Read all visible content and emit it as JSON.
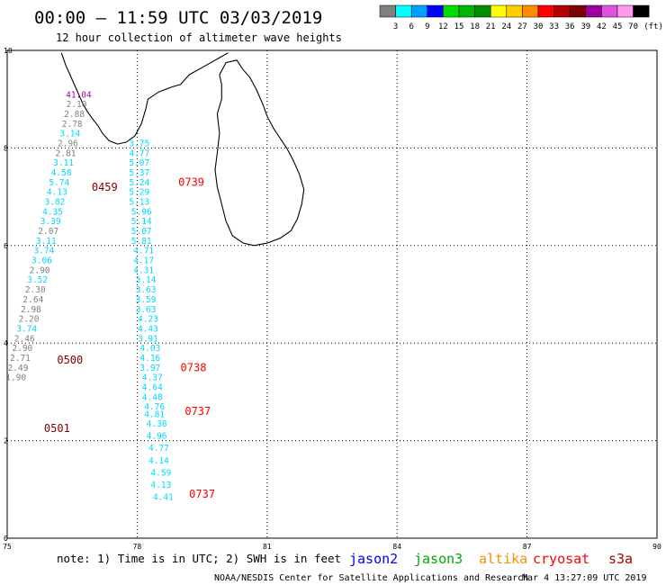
{
  "header": {
    "title": "00:00 – 11:59 UTC 03/03/2019",
    "subtitle": "12 hour collection of altimeter wave heights"
  },
  "legend": {
    "unit": "(ft)",
    "bins": [
      {
        "label": "3",
        "color": "#7f7f7f"
      },
      {
        "label": "6",
        "color": "#00ffff"
      },
      {
        "label": "9",
        "color": "#00a0ff"
      },
      {
        "label": "12",
        "color": "#0000ff"
      },
      {
        "label": "15",
        "color": "#00dd00"
      },
      {
        "label": "18",
        "color": "#00b400"
      },
      {
        "label": "21",
        "color": "#008c00"
      },
      {
        "label": "24",
        "color": "#ffff00"
      },
      {
        "label": "27",
        "color": "#ffcc00"
      },
      {
        "label": "30",
        "color": "#ff8c00"
      },
      {
        "label": "33",
        "color": "#ff0000"
      },
      {
        "label": "36",
        "color": "#b40000"
      },
      {
        "label": "39",
        "color": "#7f0000"
      },
      {
        "label": "42",
        "color": "#a000a0"
      },
      {
        "label": "45",
        "color": "#dd55dd"
      },
      {
        "label": "70",
        "color": "#ff99ee"
      },
      {
        "label": "",
        "color": "#000000"
      }
    ]
  },
  "map": {
    "lon_ticks": [
      "75",
      "78",
      "81",
      "84",
      "87",
      "90"
    ],
    "lat_ticks": [
      "0",
      "2",
      "4",
      "6",
      "8",
      "10"
    ],
    "lon_range": [
      75,
      90
    ],
    "lat_range": [
      0,
      10
    ]
  },
  "chart_data": {
    "type": "scatter",
    "tracks": [
      {
        "color": "#7f7f7f",
        "points": [
          {
            "lon": 76.65,
            "lat": 9.1,
            "v": "41.04",
            "c": "#a000a0"
          },
          {
            "lon": 76.6,
            "lat": 8.9,
            "v": "2.10",
            "c": "#7f7f7f"
          },
          {
            "lon": 76.55,
            "lat": 8.7,
            "v": "2.88",
            "c": "#7f7f7f"
          },
          {
            "lon": 76.5,
            "lat": 8.5,
            "v": "2.78",
            "c": "#7f7f7f"
          },
          {
            "lon": 76.45,
            "lat": 8.3,
            "v": "3.14",
            "c": "#00d8ff"
          },
          {
            "lon": 76.4,
            "lat": 8.1,
            "v": "2.96",
            "c": "#7f7f7f"
          },
          {
            "lon": 76.35,
            "lat": 7.9,
            "v": "2.81",
            "c": "#7f7f7f"
          },
          {
            "lon": 76.3,
            "lat": 7.7,
            "v": "3.11",
            "c": "#00d8ff"
          },
          {
            "lon": 76.25,
            "lat": 7.5,
            "v": "4.58",
            "c": "#00d8ff"
          },
          {
            "lon": 76.2,
            "lat": 7.3,
            "v": "5.74",
            "c": "#00d8ff"
          },
          {
            "lon": 76.15,
            "lat": 7.1,
            "v": "4.13",
            "c": "#00d8ff"
          },
          {
            "lon": 76.1,
            "lat": 6.9,
            "v": "3.82",
            "c": "#00d8ff"
          },
          {
            "lon": 76.05,
            "lat": 6.7,
            "v": "4.35",
            "c": "#00d8ff"
          },
          {
            "lon": 76.0,
            "lat": 6.5,
            "v": "3.39",
            "c": "#00d8ff"
          },
          {
            "lon": 75.95,
            "lat": 6.3,
            "v": "2.07",
            "c": "#7f7f7f"
          },
          {
            "lon": 75.9,
            "lat": 6.1,
            "v": "3.11",
            "c": "#00d8ff"
          },
          {
            "lon": 75.85,
            "lat": 5.9,
            "v": "3.74",
            "c": "#00d8ff"
          },
          {
            "lon": 75.8,
            "lat": 5.7,
            "v": "3.06",
            "c": "#00d8ff"
          },
          {
            "lon": 75.75,
            "lat": 5.5,
            "v": "2.90",
            "c": "#7f7f7f"
          },
          {
            "lon": 75.7,
            "lat": 5.3,
            "v": "3.52",
            "c": "#00d8ff"
          },
          {
            "lon": 75.65,
            "lat": 5.1,
            "v": "2.30",
            "c": "#7f7f7f"
          },
          {
            "lon": 75.6,
            "lat": 4.9,
            "v": "2.64",
            "c": "#7f7f7f"
          },
          {
            "lon": 75.55,
            "lat": 4.7,
            "v": "2.98",
            "c": "#7f7f7f"
          },
          {
            "lon": 75.5,
            "lat": 4.5,
            "v": "2.20",
            "c": "#7f7f7f"
          },
          {
            "lon": 75.45,
            "lat": 4.3,
            "v": "3.74",
            "c": "#00d8ff"
          },
          {
            "lon": 75.4,
            "lat": 4.1,
            "v": "2.46",
            "c": "#7f7f7f"
          },
          {
            "lon": 75.35,
            "lat": 3.9,
            "v": "2.90",
            "c": "#7f7f7f"
          },
          {
            "lon": 75.3,
            "lat": 3.7,
            "v": "2.71",
            "c": "#7f7f7f"
          },
          {
            "lon": 75.25,
            "lat": 3.5,
            "v": "2.49",
            "c": "#7f7f7f"
          },
          {
            "lon": 75.2,
            "lat": 3.3,
            "v": "1.90",
            "c": "#7f7f7f"
          }
        ],
        "time_labels": [
          {
            "lon": 76.95,
            "lat": 7.2,
            "text": "0459",
            "c": "#7f0000"
          },
          {
            "lon": 76.15,
            "lat": 3.65,
            "text": "0500",
            "c": "#7f0000"
          },
          {
            "lon": 75.85,
            "lat": 2.25,
            "text": "0501",
            "c": "#7f0000"
          }
        ]
      },
      {
        "color": "#00d8ff",
        "points": [
          {
            "lon": 78.05,
            "lat": 8.1,
            "v": "3.75",
            "c": "#00d8ff"
          },
          {
            "lon": 78.05,
            "lat": 7.9,
            "v": "4.77",
            "c": "#00d8ff"
          },
          {
            "lon": 78.05,
            "lat": 7.7,
            "v": "5.07",
            "c": "#00d8ff"
          },
          {
            "lon": 78.05,
            "lat": 7.5,
            "v": "5.37",
            "c": "#00d8ff"
          },
          {
            "lon": 78.05,
            "lat": 7.3,
            "v": "5.24",
            "c": "#00d8ff"
          },
          {
            "lon": 78.05,
            "lat": 7.1,
            "v": "5.29",
            "c": "#00d8ff"
          },
          {
            "lon": 78.05,
            "lat": 6.9,
            "v": "5.13",
            "c": "#00d8ff"
          },
          {
            "lon": 78.1,
            "lat": 6.7,
            "v": "5.96",
            "c": "#00d8ff"
          },
          {
            "lon": 78.1,
            "lat": 6.5,
            "v": "5.14",
            "c": "#00d8ff"
          },
          {
            "lon": 78.1,
            "lat": 6.3,
            "v": "5.07",
            "c": "#00d8ff"
          },
          {
            "lon": 78.1,
            "lat": 6.1,
            "v": "5.81",
            "c": "#00d8ff"
          },
          {
            "lon": 78.15,
            "lat": 5.9,
            "v": "4.71",
            "c": "#00d8ff"
          },
          {
            "lon": 78.15,
            "lat": 5.7,
            "v": "4.17",
            "c": "#00d8ff"
          },
          {
            "lon": 78.15,
            "lat": 5.5,
            "v": "4.31",
            "c": "#00d8ff"
          },
          {
            "lon": 78.2,
            "lat": 5.3,
            "v": "3.14",
            "c": "#00d8ff"
          },
          {
            "lon": 78.2,
            "lat": 5.1,
            "v": "3.63",
            "c": "#00d8ff"
          },
          {
            "lon": 78.2,
            "lat": 4.9,
            "v": "3.59",
            "c": "#00d8ff"
          },
          {
            "lon": 78.2,
            "lat": 4.7,
            "v": "3.63",
            "c": "#00d8ff"
          },
          {
            "lon": 78.25,
            "lat": 4.5,
            "v": "4.23",
            "c": "#00d8ff"
          },
          {
            "lon": 78.25,
            "lat": 4.3,
            "v": "4.43",
            "c": "#00d8ff"
          },
          {
            "lon": 78.25,
            "lat": 4.1,
            "v": "3.91",
            "c": "#00d8ff"
          },
          {
            "lon": 78.3,
            "lat": 3.9,
            "v": "4.03",
            "c": "#00d8ff"
          },
          {
            "lon": 78.3,
            "lat": 3.7,
            "v": "4.16",
            "c": "#00d8ff"
          },
          {
            "lon": 78.3,
            "lat": 3.5,
            "v": "3.97",
            "c": "#00d8ff"
          },
          {
            "lon": 78.35,
            "lat": 3.3,
            "v": "4.37",
            "c": "#00d8ff"
          },
          {
            "lon": 78.35,
            "lat": 3.1,
            "v": "4.64",
            "c": "#00d8ff"
          },
          {
            "lon": 78.35,
            "lat": 2.9,
            "v": "4.48",
            "c": "#00d8ff"
          },
          {
            "lon": 78.4,
            "lat": 2.7,
            "v": "4.76",
            "c": "#00d8ff"
          },
          {
            "lon": 78.4,
            "lat": 2.55,
            "v": "4.81",
            "c": "#00d8ff"
          },
          {
            "lon": 78.45,
            "lat": 2.35,
            "v": "4.38",
            "c": "#00d8ff"
          },
          {
            "lon": 78.45,
            "lat": 2.1,
            "v": "4.96",
            "c": "#00d8ff"
          },
          {
            "lon": 78.5,
            "lat": 1.85,
            "v": "4.77",
            "c": "#00d8ff"
          },
          {
            "lon": 78.5,
            "lat": 1.6,
            "v": "4.14",
            "c": "#00d8ff"
          },
          {
            "lon": 78.55,
            "lat": 1.35,
            "v": "4.59",
            "c": "#00d8ff"
          },
          {
            "lon": 78.55,
            "lat": 1.1,
            "v": "4.13",
            "c": "#00d8ff"
          },
          {
            "lon": 78.6,
            "lat": 0.85,
            "v": "4.41",
            "c": "#00d8ff"
          }
        ],
        "time_labels": [
          {
            "lon": 78.95,
            "lat": 7.3,
            "text": "0739",
            "c": "#ff0000"
          },
          {
            "lon": 79.0,
            "lat": 3.5,
            "text": "0738",
            "c": "#ff0000"
          },
          {
            "lon": 79.1,
            "lat": 2.6,
            "text": "0737",
            "c": "#ff0000"
          },
          {
            "lon": 79.2,
            "lat": 0.9,
            "text": "0737",
            "c": "#ff0000"
          }
        ]
      }
    ],
    "coastlines": [
      {
        "kind": "india",
        "points": [
          [
            76.25,
            9.95
          ],
          [
            76.35,
            9.7
          ],
          [
            76.45,
            9.5
          ],
          [
            76.55,
            9.3
          ],
          [
            76.65,
            9.1
          ],
          [
            76.75,
            8.9
          ],
          [
            76.85,
            8.75
          ],
          [
            76.95,
            8.62
          ],
          [
            77.1,
            8.45
          ],
          [
            77.2,
            8.3
          ],
          [
            77.35,
            8.15
          ],
          [
            77.55,
            8.08
          ],
          [
            77.75,
            8.12
          ],
          [
            77.95,
            8.25
          ],
          [
            78.1,
            8.5
          ],
          [
            78.2,
            8.8
          ],
          [
            78.25,
            9.0
          ],
          [
            78.5,
            9.15
          ],
          [
            78.8,
            9.25
          ],
          [
            79.0,
            9.3
          ],
          [
            79.2,
            9.5
          ],
          [
            79.6,
            9.7
          ],
          [
            79.9,
            9.85
          ],
          [
            80.1,
            9.95
          ]
        ]
      },
      {
        "kind": "sri_lanka",
        "points": [
          [
            79.9,
            9.5
          ],
          [
            80.05,
            9.75
          ],
          [
            80.3,
            9.8
          ],
          [
            80.45,
            9.6
          ],
          [
            80.6,
            9.45
          ],
          [
            80.75,
            9.2
          ],
          [
            80.9,
            8.9
          ],
          [
            81.0,
            8.65
          ],
          [
            81.15,
            8.4
          ],
          [
            81.3,
            8.2
          ],
          [
            81.45,
            8.0
          ],
          [
            81.6,
            7.75
          ],
          [
            81.75,
            7.45
          ],
          [
            81.85,
            7.15
          ],
          [
            81.8,
            6.85
          ],
          [
            81.7,
            6.55
          ],
          [
            81.55,
            6.3
          ],
          [
            81.3,
            6.15
          ],
          [
            81.0,
            6.05
          ],
          [
            80.7,
            6.0
          ],
          [
            80.45,
            6.05
          ],
          [
            80.2,
            6.2
          ],
          [
            80.05,
            6.5
          ],
          [
            79.95,
            6.85
          ],
          [
            79.85,
            7.2
          ],
          [
            79.8,
            7.55
          ],
          [
            79.85,
            7.9
          ],
          [
            79.9,
            8.3
          ],
          [
            79.85,
            8.7
          ],
          [
            79.95,
            9.0
          ],
          [
            79.95,
            9.3
          ],
          [
            79.9,
            9.5
          ]
        ]
      }
    ]
  },
  "footer": {
    "note": "note: 1) Time is in UTC; 2) SWH is in feet",
    "missions": [
      {
        "name": "jason2",
        "color": "#0000ff"
      },
      {
        "name": "jason3",
        "color": "#00aa00"
      },
      {
        "name": "altika",
        "color": "#ff8c00"
      },
      {
        "name": "cryosat",
        "color": "#ff0000"
      },
      {
        "name": "s3a",
        "color": "#aa0000"
      }
    ],
    "credit": "NOAA/NESDIS Center for Satellite Applications and Research",
    "timestamp": "Mar  4 13:27:09 UTC 2019"
  }
}
